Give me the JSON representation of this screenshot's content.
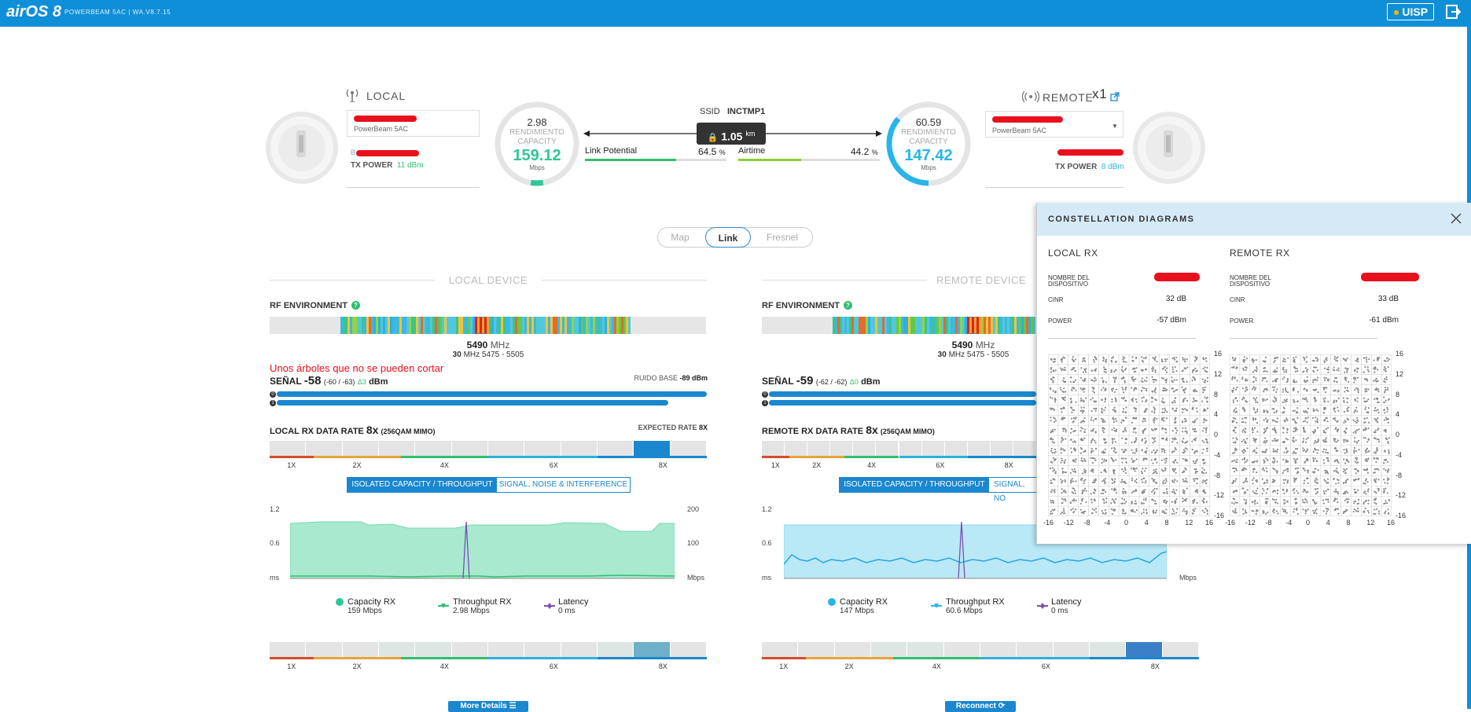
{
  "topbar": {
    "logo": "airOS 8",
    "product_line": "POWERBEAM 5AC | WA.V8.7.15",
    "uisp_label": "UISP"
  },
  "local": {
    "label": "LOCAL",
    "model": "PowerBeam 5AC",
    "tx_power_label": "TX POWER",
    "tx_power_value": "11 dBm"
  },
  "remote": {
    "label": "REMOTE",
    "count": "x1",
    "model": "PowerBeam 5AC",
    "tx_power_label": "TX POWER",
    "tx_power_value": "8 dBm"
  },
  "gauges": {
    "local": {
      "throughput": "2.98",
      "line1": "RENDIMIENTO",
      "line2": "CAPACITY",
      "capacity": "159.12",
      "unit": "Mbps",
      "fill": 0.05,
      "color": "#2fc79a"
    },
    "remote": {
      "throughput": "60.59",
      "line1": "RENDIMIENTO",
      "line2": "CAPACITY",
      "capacity": "147.42",
      "unit": "Mbps",
      "fill": 0.36,
      "color": "#28b5e8"
    }
  },
  "link": {
    "ssid_label": "SSID",
    "ssid_value": "INCTMP1",
    "distance": "1.05",
    "distance_unit": "km",
    "link_potential_label": "Link Potential",
    "link_potential_value": "64.5",
    "airtime_label": "Airtime",
    "airtime_value": "44.2",
    "percent": "%",
    "link_potential_fraction": 0.645,
    "airtime_fraction": 0.442
  },
  "view_tabs": {
    "map": "Map",
    "link": "Link",
    "fresnel": "Fresnel"
  },
  "local_device": {
    "section_title": "LOCAL DEVICE",
    "rf_label": "RF ENVIRONMENT",
    "freq": "5490",
    "freq_unit": "MHz",
    "width": "30",
    "width_unit": "MHz",
    "range": "5475 - 5505",
    "annotation": "Unos árboles que no se pueden cortar",
    "signal_label": "SEÑAL",
    "signal_value": "-58",
    "signal_chains": "(-60 / -63)",
    "signal_delta": "Δ3",
    "signal_unit": "dBm",
    "noise_label": "RUIDO BASE",
    "noise_value": "-89 dBm",
    "rate_label": "LOCAL RX DATA RATE",
    "rate_value": "8x",
    "rate_mode": "(256QAM MIMO)",
    "expected_label": "EXPECTED RATE",
    "expected_value": "8X",
    "tab_active": "ISOLATED CAPACITY / THROUGHPUT",
    "tab_other": "SIGNAL, NOISE & INTERFERENCE",
    "axis_left": [
      "1.2",
      "0.6",
      "ms"
    ],
    "axis_right": [
      "200",
      "100",
      "Mbps"
    ],
    "legend": [
      {
        "name": "Capacity RX",
        "value": "159 Mbps"
      },
      {
        "name": "Throughput RX",
        "value": "2.98 Mbps"
      },
      {
        "name": "Latency",
        "value": "0 ms"
      }
    ],
    "button": "More Details"
  },
  "remote_device": {
    "section_title": "REMOTE DEVICE",
    "rf_label": "RF ENVIRONMENT",
    "freq": "5490",
    "freq_unit": "MHz",
    "width": "30",
    "width_unit": "MHz",
    "range": "5475 - 5505",
    "signal_label": "SEÑAL",
    "signal_value": "-59",
    "signal_chains": "(-62 / -62)",
    "signal_delta": "Δ0",
    "signal_unit": "dBm",
    "rate_label": "REMOTE RX DATA RATE",
    "rate_value": "8x",
    "rate_mode": "(256QAM MIMO)",
    "tab_active": "ISOLATED CAPACITY / THROUGHPUT",
    "tab_other": "SIGNAL, NO",
    "axis_left": [
      "1.2",
      "0.6",
      "ms"
    ],
    "axis_right_partial": "100",
    "axis_right_unit": "Mbps",
    "legend": [
      {
        "name": "Capacity RX",
        "value": "147 Mbps"
      },
      {
        "name": "Throughput RX",
        "value": "60.6 Mbps"
      },
      {
        "name": "Latency",
        "value": "0 ms"
      }
    ],
    "button": "Reconnect"
  },
  "rate_ticks": [
    "1X",
    "2X",
    "4X",
    "6X",
    "8X"
  ],
  "constellation": {
    "title": "CONSTELLATION DIAGRAMS",
    "local": {
      "label": "LOCAL RX",
      "name_label": "NOMBRE DEL DISPOSITIVO",
      "cinr_label": "CINR",
      "cinr_value": "32 dB",
      "power_label": "POWER",
      "power_value": "-57 dBm"
    },
    "remote": {
      "label": "REMOTE RX",
      "name_label": "NOMBRE DEL DISPOSITIVO",
      "cinr_label": "CINR",
      "cinr_value": "33 dB",
      "power_label": "POWER",
      "power_value": "-61 dBm"
    },
    "y_ticks": [
      "16",
      "12",
      "8",
      "4",
      "0",
      "-4",
      "-8",
      "-12",
      "-16"
    ],
    "x_ticks": [
      "-16",
      "-12",
      "-8",
      "-4",
      "0",
      "4",
      "8",
      "12",
      "16"
    ]
  }
}
